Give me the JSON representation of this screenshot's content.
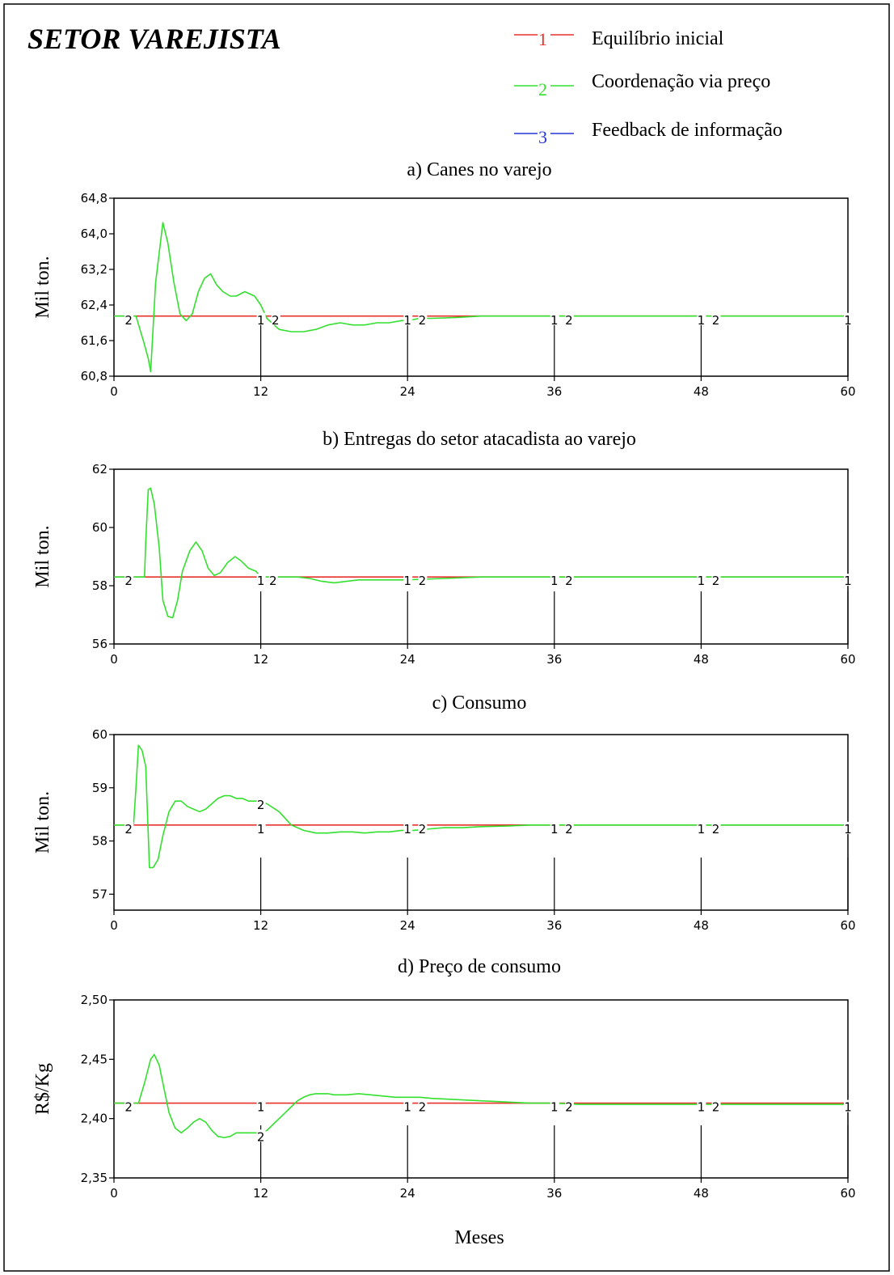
{
  "header": {
    "title": "SETOR VAREJISTA",
    "legend": [
      {
        "marker": "1",
        "label": "Equilíbrio inicial",
        "color": "#e8302a"
      },
      {
        "marker": "2",
        "label": "Coordenação via preço",
        "color": "#33e02e"
      },
      {
        "marker": "3",
        "label": "Feedback de informação",
        "color": "#2636d6"
      }
    ]
  },
  "x_axis_label": "Meses",
  "chart_data": [
    {
      "type": "line",
      "title": "a) Canes no varejo",
      "ylabel": "Mil ton.",
      "xlim": [
        0,
        60
      ],
      "ylim": [
        60.8,
        64.8
      ],
      "x_ticks": [
        0,
        12,
        24,
        36,
        48,
        60
      ],
      "y_ticks": [
        60.8,
        61.6,
        62.4,
        63.2,
        64.0,
        64.8
      ],
      "y_tick_labels": [
        "60,8",
        "61,6",
        "62,4",
        "63,2",
        "64,0",
        "64,8"
      ],
      "series": [
        {
          "name": "Equilíbrio inicial",
          "marker": "1",
          "color": "#e8302a",
          "x": [
            0,
            60
          ],
          "y": [
            62.15,
            62.15
          ]
        },
        {
          "name": "Coordenação via preço",
          "marker": "2",
          "color": "#33e02e",
          "x": [
            0,
            1.8,
            2.4,
            2.8,
            3.0,
            3.4,
            4.0,
            4.4,
            4.9,
            5.4,
            5.9,
            6.4,
            6.9,
            7.4,
            7.9,
            8.4,
            8.9,
            9.5,
            10.0,
            10.7,
            11.5,
            12.0,
            12.5,
            13.5,
            14.5,
            15.5,
            16.5,
            17.5,
            18.5,
            19.5,
            20.5,
            21.5,
            22.5,
            23.5,
            24.0,
            25.0,
            26.0,
            28.0,
            30.0,
            32.0,
            36.0,
            48.0,
            60.0
          ],
          "y": [
            62.15,
            62.15,
            61.6,
            61.2,
            60.9,
            62.9,
            64.25,
            63.8,
            62.9,
            62.2,
            62.05,
            62.2,
            62.7,
            63.0,
            63.1,
            62.85,
            62.7,
            62.6,
            62.6,
            62.7,
            62.6,
            62.4,
            62.1,
            61.85,
            61.8,
            61.8,
            61.85,
            61.95,
            62.0,
            61.95,
            61.95,
            62.0,
            62.0,
            62.05,
            62.05,
            62.1,
            62.1,
            62.12,
            62.15,
            62.15,
            62.15,
            62.15,
            62.15
          ]
        }
      ],
      "curve_markers": [
        {
          "series": "2",
          "x": 1.2,
          "y": 62.15,
          "label": "2"
        },
        {
          "series": "1",
          "x": 12,
          "y": 62.15,
          "label": "1"
        },
        {
          "series": "2",
          "x": 13.2,
          "y": 62.15,
          "label": "2"
        },
        {
          "series": "1",
          "x": 24,
          "y": 62.15,
          "label": "1"
        },
        {
          "series": "2",
          "x": 25.2,
          "y": 62.15,
          "label": "2"
        },
        {
          "series": "1",
          "x": 36,
          "y": 62.15,
          "label": "1"
        },
        {
          "series": "2",
          "x": 37.2,
          "y": 62.15,
          "label": "2"
        },
        {
          "series": "1",
          "x": 48,
          "y": 62.15,
          "label": "1"
        },
        {
          "series": "2",
          "x": 49.2,
          "y": 62.15,
          "label": "2"
        },
        {
          "series": "1",
          "x": 60,
          "y": 62.15,
          "label": "1"
        }
      ]
    },
    {
      "type": "line",
      "title": "b) Entregas do setor atacadista ao varejo",
      "ylabel": "Mil ton.",
      "xlim": [
        0,
        60
      ],
      "ylim": [
        56,
        62
      ],
      "x_ticks": [
        0,
        12,
        24,
        36,
        48,
        60
      ],
      "y_ticks": [
        56,
        58,
        60,
        62
      ],
      "y_tick_labels": [
        "56",
        "58",
        "60",
        "62"
      ],
      "series": [
        {
          "name": "Equilíbrio inicial",
          "marker": "1",
          "color": "#e8302a",
          "x": [
            0,
            60
          ],
          "y": [
            58.3,
            58.3
          ]
        },
        {
          "name": "Coordenação via preço",
          "marker": "2",
          "color": "#33e02e",
          "x": [
            0,
            2.5,
            2.6,
            2.8,
            3.0,
            3.3,
            3.7,
            4.0,
            4.4,
            4.8,
            5.2,
            5.6,
            6.2,
            6.7,
            7.2,
            7.7,
            8.2,
            8.7,
            9.3,
            9.9,
            10.4,
            11.0,
            11.6,
            12.0,
            13.0,
            14.0,
            15.0,
            16.0,
            17.0,
            18.0,
            19.0,
            20.0,
            21.0,
            22.0,
            23.0,
            24.0,
            25.0,
            27.0,
            30.0,
            36.0,
            48.0,
            60.0
          ],
          "y": [
            58.3,
            58.3,
            59.5,
            61.3,
            61.35,
            60.8,
            59.3,
            57.5,
            56.95,
            56.9,
            57.5,
            58.5,
            59.2,
            59.5,
            59.2,
            58.6,
            58.35,
            58.45,
            58.8,
            59.0,
            58.85,
            58.6,
            58.5,
            58.3,
            58.3,
            58.3,
            58.3,
            58.25,
            58.15,
            58.1,
            58.15,
            58.2,
            58.2,
            58.2,
            58.2,
            58.2,
            58.22,
            58.25,
            58.3,
            58.3,
            58.3,
            58.3
          ]
        }
      ],
      "curve_markers": [
        {
          "series": "2",
          "x": 1.2,
          "y": 58.3,
          "label": "2"
        },
        {
          "series": "1",
          "x": 12,
          "y": 58.3,
          "label": "1"
        },
        {
          "series": "2",
          "x": 13.0,
          "y": 58.3,
          "label": "2"
        },
        {
          "series": "1",
          "x": 24,
          "y": 58.3,
          "label": "1"
        },
        {
          "series": "2",
          "x": 25.2,
          "y": 58.3,
          "label": "2"
        },
        {
          "series": "1",
          "x": 36,
          "y": 58.3,
          "label": "1"
        },
        {
          "series": "2",
          "x": 37.2,
          "y": 58.3,
          "label": "2"
        },
        {
          "series": "1",
          "x": 48,
          "y": 58.3,
          "label": "1"
        },
        {
          "series": "2",
          "x": 49.2,
          "y": 58.3,
          "label": "2"
        },
        {
          "series": "1",
          "x": 60,
          "y": 58.3,
          "label": "1"
        }
      ]
    },
    {
      "type": "line",
      "title": "c) Consumo",
      "ylabel": "Mil ton.",
      "xlim": [
        0,
        60
      ],
      "ylim": [
        56.7,
        60
      ],
      "x_ticks": [
        0,
        12,
        24,
        36,
        48,
        60
      ],
      "y_ticks": [
        57,
        58,
        59,
        60
      ],
      "y_tick_labels": [
        "57",
        "58",
        "59",
        "60"
      ],
      "series": [
        {
          "name": "Equilíbrio inicial",
          "marker": "1",
          "color": "#e8302a",
          "x": [
            0,
            60
          ],
          "y": [
            58.3,
            58.3
          ]
        },
        {
          "name": "Coordenação via preço",
          "marker": "2",
          "color": "#33e02e",
          "x": [
            0,
            1.6,
            1.8,
            2.0,
            2.3,
            2.6,
            2.9,
            3.2,
            3.6,
            4.0,
            4.5,
            5.0,
            5.5,
            6.0,
            6.5,
            7.0,
            7.5,
            8.0,
            8.5,
            9.0,
            9.5,
            10.0,
            10.5,
            11.0,
            11.5,
            12.0,
            12.5,
            13.5,
            14.5,
            15.5,
            16.5,
            17.5,
            18.5,
            19.5,
            20.5,
            21.5,
            22.5,
            23.5,
            24.5,
            25.5,
            27.0,
            28.5,
            30.0,
            32.0,
            34.0,
            36.0,
            48.0,
            60.0
          ],
          "y": [
            58.3,
            58.3,
            59.0,
            59.8,
            59.7,
            59.4,
            57.5,
            57.5,
            57.65,
            58.1,
            58.55,
            58.75,
            58.75,
            58.65,
            58.6,
            58.55,
            58.6,
            58.7,
            58.8,
            58.85,
            58.85,
            58.8,
            58.8,
            58.75,
            58.75,
            58.75,
            58.7,
            58.55,
            58.3,
            58.2,
            58.15,
            58.15,
            58.17,
            58.17,
            58.15,
            58.17,
            58.17,
            58.2,
            58.2,
            58.22,
            58.25,
            58.25,
            58.27,
            58.28,
            58.3,
            58.3,
            58.3,
            58.3
          ]
        }
      ],
      "curve_markers": [
        {
          "series": "2",
          "x": 1.2,
          "y": 58.3,
          "label": "2"
        },
        {
          "series": "2",
          "x": 12,
          "y": 58.75,
          "label": "2"
        },
        {
          "series": "1",
          "x": 12,
          "y": 58.3,
          "label": "1"
        },
        {
          "series": "1",
          "x": 24,
          "y": 58.3,
          "label": "1"
        },
        {
          "series": "2",
          "x": 25.2,
          "y": 58.3,
          "label": "2"
        },
        {
          "series": "1",
          "x": 36,
          "y": 58.3,
          "label": "1"
        },
        {
          "series": "2",
          "x": 37.2,
          "y": 58.3,
          "label": "2"
        },
        {
          "series": "1",
          "x": 48,
          "y": 58.3,
          "label": "1"
        },
        {
          "series": "2",
          "x": 49.2,
          "y": 58.3,
          "label": "2"
        },
        {
          "series": "1",
          "x": 60,
          "y": 58.3,
          "label": "1"
        }
      ]
    },
    {
      "type": "line",
      "title": "d) Preço de consumo",
      "ylabel": "R$/Kg",
      "xlim": [
        0,
        60
      ],
      "ylim": [
        2.35,
        2.5
      ],
      "x_ticks": [
        0,
        12,
        24,
        36,
        48,
        60
      ],
      "y_ticks": [
        2.35,
        2.4,
        2.45,
        2.5
      ],
      "y_tick_labels": [
        "2,35",
        "2,40",
        "2,45",
        "2,50"
      ],
      "series": [
        {
          "name": "Equilíbrio inicial",
          "marker": "1",
          "color": "#e8302a",
          "x": [
            0,
            60
          ],
          "y": [
            2.413,
            2.413
          ]
        },
        {
          "name": "Coordenação via preço",
          "marker": "2",
          "color": "#33e02e",
          "x": [
            0,
            2.0,
            2.5,
            3.0,
            3.3,
            3.7,
            4.0,
            4.5,
            5.0,
            5.5,
            6.0,
            6.5,
            7.0,
            7.5,
            8.0,
            8.5,
            9.0,
            9.5,
            10.0,
            10.5,
            11.0,
            11.5,
            12.0,
            12.5,
            13.0,
            13.5,
            14.0,
            14.5,
            15.0,
            15.5,
            16.0,
            16.5,
            17.0,
            17.5,
            18.0,
            19.0,
            20.0,
            21.0,
            22.0,
            23.0,
            24.0,
            25.0,
            26.0,
            28.0,
            30.0,
            32.0,
            34.0,
            36.0,
            38.0,
            40.0,
            44.0,
            48.0,
            54.0,
            60.0
          ],
          "y": [
            2.413,
            2.413,
            2.43,
            2.45,
            2.454,
            2.445,
            2.43,
            2.405,
            2.392,
            2.388,
            2.392,
            2.397,
            2.4,
            2.397,
            2.39,
            2.385,
            2.384,
            2.385,
            2.388,
            2.388,
            2.388,
            2.388,
            2.388,
            2.39,
            2.395,
            2.4,
            2.405,
            2.41,
            2.415,
            2.418,
            2.42,
            2.421,
            2.421,
            2.421,
            2.42,
            2.42,
            2.421,
            2.42,
            2.419,
            2.418,
            2.418,
            2.418,
            2.417,
            2.416,
            2.415,
            2.414,
            2.413,
            2.413,
            2.412,
            2.412,
            2.412,
            2.412,
            2.412,
            2.412
          ]
        }
      ],
      "curve_markers": [
        {
          "series": "2",
          "x": 1.2,
          "y": 2.413,
          "label": "2"
        },
        {
          "series": "1",
          "x": 12,
          "y": 2.413,
          "label": "1"
        },
        {
          "series": "2",
          "x": 12,
          "y": 2.388,
          "label": "2"
        },
        {
          "series": "1",
          "x": 24,
          "y": 2.413,
          "label": "1"
        },
        {
          "series": "2",
          "x": 25.2,
          "y": 2.413,
          "label": "2"
        },
        {
          "series": "1",
          "x": 36,
          "y": 2.413,
          "label": "1"
        },
        {
          "series": "2",
          "x": 37.2,
          "y": 2.413,
          "label": "2"
        },
        {
          "series": "1",
          "x": 48,
          "y": 2.413,
          "label": "1"
        },
        {
          "series": "2",
          "x": 49.2,
          "y": 2.413,
          "label": "2"
        },
        {
          "series": "1",
          "x": 60,
          "y": 2.413,
          "label": "1"
        }
      ]
    }
  ]
}
